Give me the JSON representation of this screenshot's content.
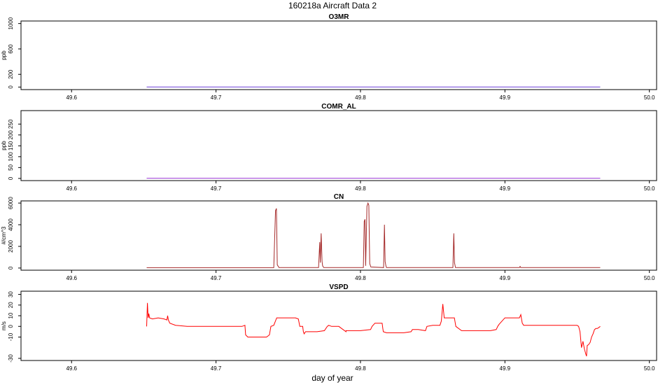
{
  "figure": {
    "title": "160218a   Aircraft Data 2",
    "xlabel": "day of year"
  },
  "chart_data": [
    {
      "type": "line",
      "title": "O3MR",
      "ylabel": "ppb",
      "xlim": [
        49.565,
        50.005
      ],
      "ylim": [
        -40,
        1040
      ],
      "xticks": [
        49.6,
        49.7,
        49.8,
        49.9,
        50.0
      ],
      "xtick_labels": [
        "49.6",
        "49.7",
        "49.8",
        "49.9",
        "50.0"
      ],
      "yticks": [
        0,
        200,
        600,
        1000
      ],
      "ytick_labels": [
        "0",
        "200",
        "600",
        "1000"
      ],
      "series": [
        {
          "color": "#6a3dd6",
          "x": [
            49.652,
            49.966
          ],
          "y": [
            2,
            2
          ]
        }
      ]
    },
    {
      "type": "line",
      "title": "COMR_AL",
      "ylabel": "ppb",
      "xlim": [
        49.565,
        50.005
      ],
      "ylim": [
        -10,
        312
      ],
      "xticks": [
        49.6,
        49.7,
        49.8,
        49.9,
        50.0
      ],
      "xtick_labels": [
        "49.6",
        "49.7",
        "49.8",
        "49.9",
        "50.0"
      ],
      "yticks": [
        0,
        50,
        100,
        150,
        200,
        250
      ],
      "ytick_labels": [
        "0",
        "50",
        "100",
        "150",
        "200",
        "250"
      ],
      "series": [
        {
          "color": "#9a36d6",
          "x": [
            49.652,
            49.966
          ],
          "y": [
            1,
            1
          ]
        }
      ]
    },
    {
      "type": "line",
      "title": "CN",
      "ylabel": "#/cm^3",
      "xlim": [
        49.565,
        50.005
      ],
      "ylim": [
        -200,
        6200
      ],
      "xticks": [
        49.6,
        49.7,
        49.8,
        49.9,
        50.0
      ],
      "xtick_labels": [
        "49.6",
        "49.7",
        "49.8",
        "49.9",
        "50.0"
      ],
      "yticks": [
        0,
        2000,
        4000,
        6000
      ],
      "ytick_labels": [
        "0",
        "2000",
        "4000",
        "6000"
      ],
      "series": [
        {
          "color": "#a52a2a",
          "x": [
            49.652,
            49.74,
            49.7412,
            49.7418,
            49.7424,
            49.7436,
            49.771,
            49.7718,
            49.7722,
            49.7728,
            49.7734,
            49.7738,
            49.7746,
            49.802,
            49.8026,
            49.8031,
            49.8036,
            49.8045,
            49.8052,
            49.8058,
            49.8064,
            49.8072,
            49.816,
            49.8166,
            49.8171,
            49.8176,
            49.818,
            49.864,
            49.8646,
            49.8651,
            49.8658,
            49.91,
            49.9105,
            49.911,
            49.966
          ],
          "y": [
            30,
            30,
            5300,
            5500,
            300,
            40,
            40,
            2400,
            500,
            3200,
            600,
            200,
            40,
            40,
            4300,
            4500,
            200,
            5700,
            6000,
            5800,
            400,
            100,
            40,
            4000,
            600,
            200,
            40,
            40,
            3200,
            500,
            40,
            40,
            150,
            40,
            40
          ]
        }
      ]
    },
    {
      "type": "line",
      "title": "VSPD",
      "ylabel": "m/s",
      "xlim": [
        49.565,
        50.005
      ],
      "ylim": [
        -32,
        33
      ],
      "xticks": [
        49.6,
        49.7,
        49.8,
        49.9,
        50.0
      ],
      "xtick_labels": [
        "49.6",
        "49.7",
        "49.8",
        "49.9",
        "50.0"
      ],
      "yticks": [
        -30,
        -10,
        0,
        10,
        20,
        30
      ],
      "ytick_labels": [
        "-30",
        "-10",
        "0",
        "10",
        "20",
        "30"
      ],
      "series": [
        {
          "color": "#ff0000",
          "x": [
            49.652,
            49.6525,
            49.653,
            49.6535,
            49.654,
            49.656,
            49.66,
            49.664,
            49.666,
            49.6665,
            49.667,
            49.668,
            49.672,
            49.68,
            49.69,
            49.7,
            49.71,
            49.718,
            49.72,
            49.7205,
            49.722,
            49.73,
            49.735,
            49.737,
            49.738,
            49.74,
            49.742,
            49.75,
            49.755,
            49.757,
            49.758,
            49.76,
            49.7605,
            49.761,
            49.762,
            49.77,
            49.775,
            49.777,
            49.778,
            49.78,
            49.785,
            49.79,
            49.79,
            49.8,
            49.807,
            49.808,
            49.81,
            49.815,
            49.8155,
            49.8158,
            49.818,
            49.83,
            49.835,
            49.836,
            49.84,
            49.845,
            49.846,
            49.85,
            49.855,
            49.856,
            49.857,
            49.858,
            49.86,
            49.865,
            49.866,
            49.87,
            49.875,
            49.885,
            49.89,
            49.894,
            49.895,
            49.896,
            49.9,
            49.905,
            49.91,
            49.911,
            49.912,
            49.913,
            49.92,
            49.93,
            49.94,
            49.945,
            49.95,
            49.951,
            49.952,
            49.9525,
            49.953,
            49.954,
            49.955,
            49.956,
            49.9565,
            49.957,
            49.958,
            49.959,
            49.96,
            49.961,
            49.962,
            49.963,
            49.964,
            49.965,
            49.966
          ],
          "y": [
            0,
            22,
            8,
            12,
            8,
            7,
            8,
            7,
            6,
            10,
            6,
            3,
            1,
            0,
            0,
            0,
            0,
            0,
            1,
            -8,
            -10,
            -10,
            -10,
            -8,
            0,
            1,
            8,
            8,
            8,
            7,
            0,
            0,
            -5,
            -7,
            -5,
            -5,
            -4,
            0,
            1,
            0,
            0,
            -5,
            -4,
            -4,
            -3,
            0,
            3,
            3,
            -2,
            -5,
            -6,
            -6,
            -5,
            -3,
            -3,
            -4,
            0,
            1,
            1,
            5,
            21,
            8,
            8,
            8,
            0,
            -4,
            -4,
            -4,
            -4,
            -3,
            0,
            2,
            8,
            8,
            8,
            11,
            3,
            1,
            1,
            1,
            1,
            1,
            1,
            0,
            -5,
            -13,
            -20,
            -14,
            -21,
            -26,
            -28,
            -18,
            -17,
            -15,
            -10,
            -7,
            -3,
            -2,
            -2,
            -1,
            0
          ]
        }
      ]
    }
  ]
}
